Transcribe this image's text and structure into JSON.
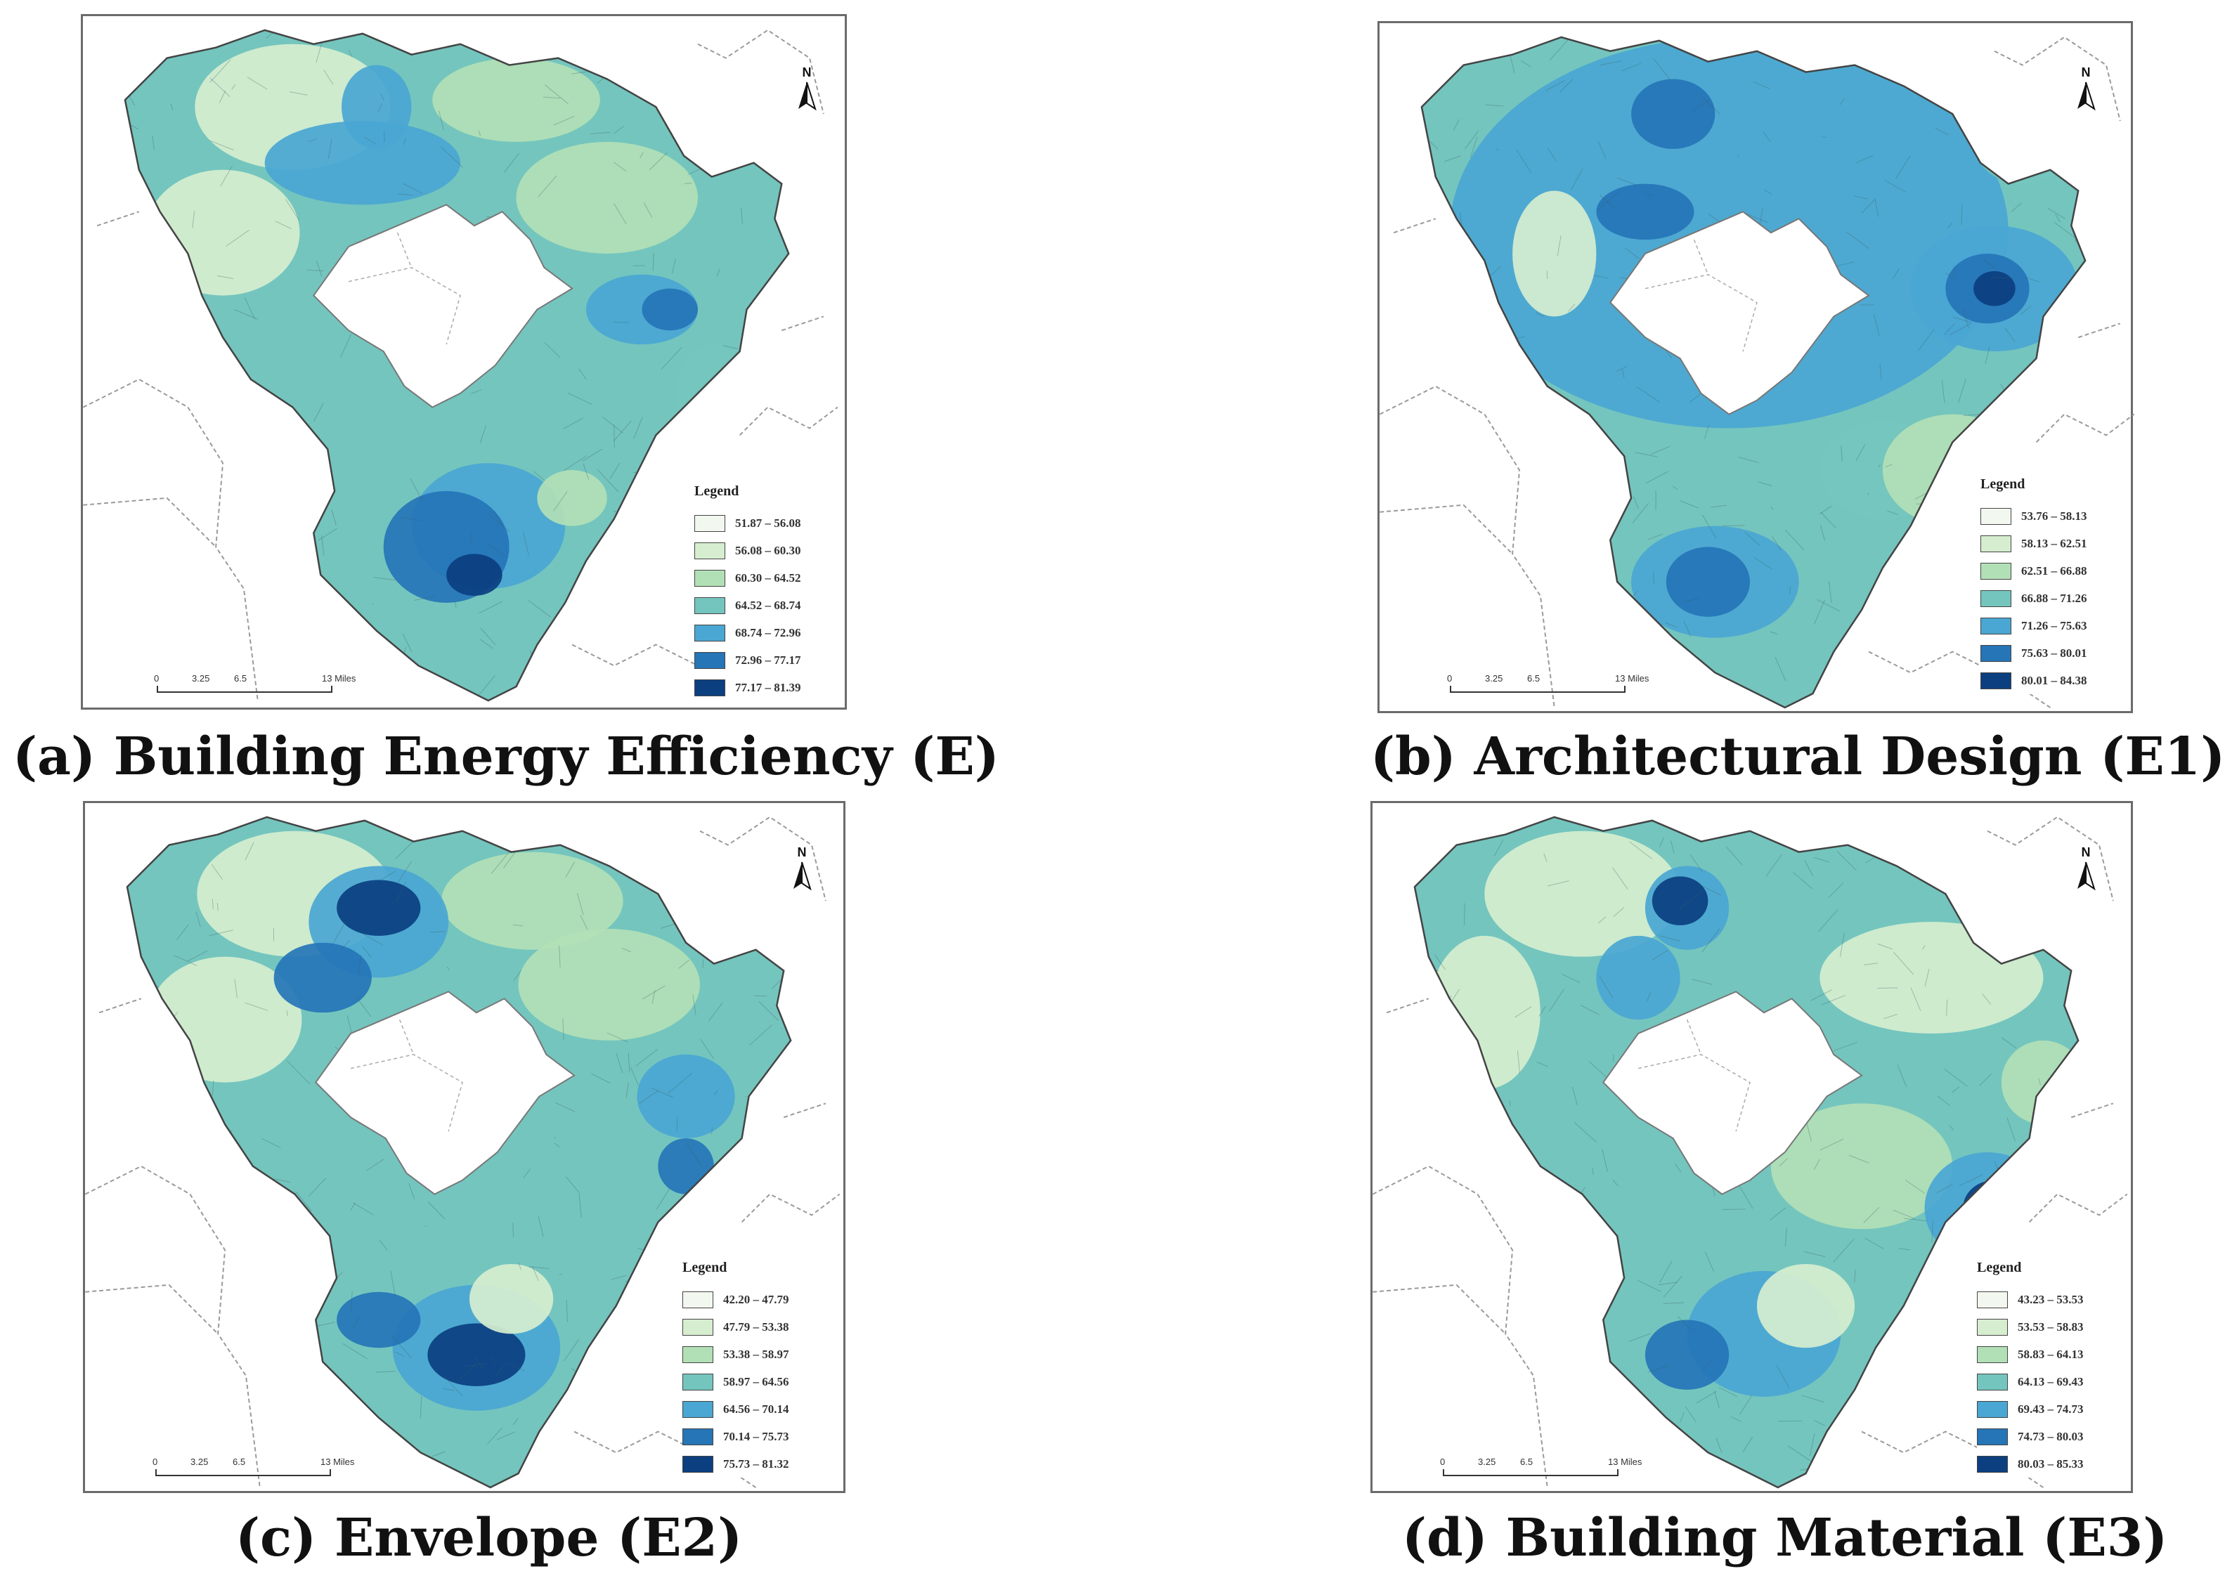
{
  "north_label": "N",
  "scale_labels": [
    "0",
    "3.25",
    "6.5",
    "13 Miles"
  ],
  "legend_title": "Legend",
  "palette": [
    "#f2f8f0",
    "#d6eecf",
    "#b2e0b6",
    "#74c5be",
    "#4aa6d2",
    "#2575b7",
    "#0b3f80"
  ],
  "panels": [
    {
      "caption": "(a) Building Energy Efficiency (E)",
      "legend": [
        "51.87 – 56.08",
        "56.08 – 60.30",
        "60.30 – 64.52",
        "64.52 – 68.74",
        "68.74 – 72.96",
        "72.96 – 77.17",
        "77.17 – 81.39"
      ]
    },
    {
      "caption": "(b) Architectural Design (E1)",
      "legend": [
        "53.76 – 58.13",
        "58.13 – 62.51",
        "62.51 – 66.88",
        "66.88 – 71.26",
        "71.26 – 75.63",
        "75.63 – 80.01",
        "80.01 – 84.38"
      ]
    },
    {
      "caption": "(c) Envelope (E2)",
      "legend": [
        "42.20 – 47.79",
        "47.79 – 53.38",
        "53.38 – 58.97",
        "58.97 – 64.56",
        "64.56 – 70.14",
        "70.14 – 75.73",
        "75.73 – 81.32"
      ]
    },
    {
      "caption": "(d) Building Material (E3)",
      "legend": [
        "43.23 – 53.53",
        "53.53 – 58.83",
        "58.83 – 64.13",
        "64.13 – 69.43",
        "69.43 – 74.73",
        "74.73 – 80.03",
        "80.03 – 85.33"
      ]
    }
  ]
}
